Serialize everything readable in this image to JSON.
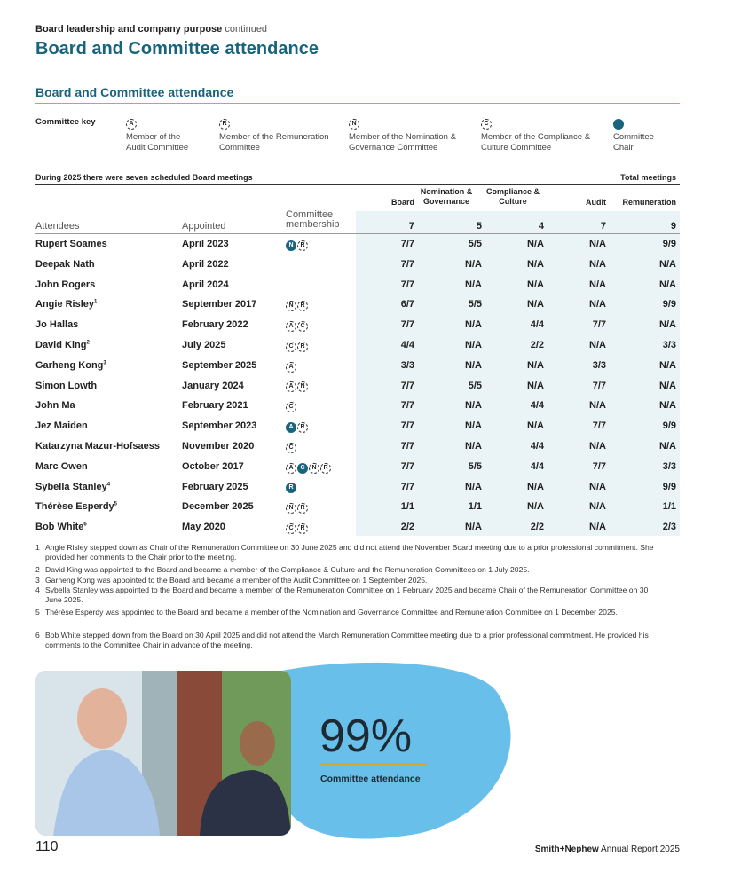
{
  "header": {
    "section": "Board leadership and company purpose",
    "continued": "continued",
    "title": "Board and Committee attendance"
  },
  "subtitle": "Board and Committee attendance",
  "key": {
    "label": "Committee key",
    "items": [
      {
        "symbol": "A",
        "text": "Member of the Audit Committee"
      },
      {
        "symbol": "R",
        "text": "Member of the Remuneration Committee"
      },
      {
        "symbol": "N",
        "text": "Member of the Nomination & Governance Committee"
      },
      {
        "symbol": "C",
        "text": "Member of the Compliance & Culture Committee"
      },
      {
        "text": "Committee Chair"
      }
    ]
  },
  "table": {
    "intro": "During 2025 there were seven scheduled Board meetings",
    "total_label": "Total meetings",
    "columns": [
      "Attendees",
      "Appointed",
      "Committee membership",
      "Board",
      "Nomination & Governance",
      "Compliance & Culture",
      "Audit",
      "Remuneration"
    ],
    "totals": [
      7,
      5,
      4,
      7,
      9
    ],
    "rows": [
      {
        "name": "Rupert Soames",
        "appointed": "April 2023",
        "membership": [
          {
            "letter": "N",
            "chair": true
          },
          {
            "letter": "R"
          }
        ],
        "values": [
          "7/7",
          "5/5",
          "N/A",
          "N/A",
          "9/9"
        ]
      },
      {
        "name": "Deepak Nath",
        "appointed": "April 2022",
        "membership": [],
        "values": [
          "7/7",
          "N/A",
          "N/A",
          "N/A",
          "N/A"
        ]
      },
      {
        "name": "John Rogers",
        "appointed": "April 2024",
        "membership": [],
        "values": [
          "7/7",
          "N/A",
          "N/A",
          "N/A",
          "N/A"
        ]
      },
      {
        "name": "Angie Risley",
        "note": "1",
        "appointed": "September 2017",
        "membership": [
          {
            "letter": "N"
          },
          {
            "letter": "R"
          }
        ],
        "values": [
          "6/7",
          "5/5",
          "N/A",
          "N/A",
          "9/9"
        ]
      },
      {
        "name": "Jo Hallas",
        "appointed": "February 2022",
        "membership": [
          {
            "letter": "A"
          },
          {
            "letter": "C"
          }
        ],
        "values": [
          "7/7",
          "N/A",
          "4/4",
          "7/7",
          "N/A"
        ]
      },
      {
        "name": "David King",
        "note": "2",
        "appointed": "July 2025",
        "membership": [
          {
            "letter": "C"
          },
          {
            "letter": "R"
          }
        ],
        "values": [
          "4/4",
          "N/A",
          "2/2",
          "N/A",
          "3/3"
        ]
      },
      {
        "name": "Garheng Kong",
        "note": "3",
        "appointed": "September 2025",
        "membership": [
          {
            "letter": "A"
          }
        ],
        "values": [
          "3/3",
          "N/A",
          "N/A",
          "3/3",
          "N/A"
        ]
      },
      {
        "name": "Simon Lowth",
        "appointed": "January 2024",
        "membership": [
          {
            "letter": "A"
          },
          {
            "letter": "N"
          }
        ],
        "values": [
          "7/7",
          "5/5",
          "N/A",
          "7/7",
          "N/A"
        ]
      },
      {
        "name": "John Ma",
        "appointed": "February 2021",
        "membership": [
          {
            "letter": "C"
          }
        ],
        "values": [
          "7/7",
          "N/A",
          "4/4",
          "N/A",
          "N/A"
        ]
      },
      {
        "name": "Jez Maiden",
        "appointed": "September 2023",
        "membership": [
          {
            "letter": "A",
            "chair": true
          },
          {
            "letter": "R"
          }
        ],
        "values": [
          "7/7",
          "N/A",
          "N/A",
          "7/7",
          "9/9"
        ]
      },
      {
        "name": "Katarzyna Mazur-Hofsaess",
        "appointed": "November 2020",
        "membership": [
          {
            "letter": "C"
          }
        ],
        "values": [
          "7/7",
          "N/A",
          "4/4",
          "N/A",
          "N/A"
        ]
      },
      {
        "name": "Marc Owen",
        "appointed": "October 2017",
        "membership": [
          {
            "letter": "A"
          },
          {
            "letter": "C",
            "chair": true
          },
          {
            "letter": "N"
          },
          {
            "letter": "R"
          }
        ],
        "values": [
          "7/7",
          "5/5",
          "4/4",
          "7/7",
          "3/3"
        ]
      },
      {
        "name": "Sybella Stanley",
        "note": "4",
        "appointed": "February 2025",
        "membership": [
          {
            "letter": "R",
            "chair": true
          }
        ],
        "values": [
          "7/7",
          "N/A",
          "N/A",
          "N/A",
          "9/9"
        ]
      },
      {
        "name": "Thérèse Esperdy",
        "note": "5",
        "appointed": "December 2025",
        "membership": [
          {
            "letter": "N"
          },
          {
            "letter": "R"
          }
        ],
        "values": [
          "1/1",
          "1/1",
          "N/A",
          "N/A",
          "1/1"
        ]
      },
      {
        "name": "Bob White",
        "note": "6",
        "appointed": "May 2020",
        "membership": [
          {
            "letter": "C"
          },
          {
            "letter": "R"
          }
        ],
        "values": [
          "2/2",
          "N/A",
          "2/2",
          "N/A",
          "2/3"
        ]
      }
    ]
  },
  "footnotes": [
    {
      "number": "1",
      "text": "Angie Risley stepped down as Chair of the Remuneration Committee on 30 June 2025 and did not attend the November Board meeting due to a prior professional commitment. She provided her comments to the Chair prior to the meeting."
    },
    {
      "number": "2",
      "text": "David King was appointed to the Board and became a member of the Compliance & Culture and the Remuneration Committees on 1 July 2025."
    },
    {
      "number": "3",
      "text": "Garheng Kong was appointed to the Board and became a member of the Audit Committee on 1 September 2025."
    },
    {
      "number": "4",
      "text": "Sybella Stanley was appointed to the Board and became a member of the Remuneration Committee on 1 February 2025 and became Chair of the Remuneration Committee on 30 June 2025."
    },
    {
      "number": "5",
      "text": "Thérèse Esperdy was appointed to the Board and became a member of the Nomination and Governance Committee and Remuneration Committee on 1 December 2025."
    },
    {
      "number": "6",
      "text": "Bob White stepped down from the Board on 30 April 2025 and did not attend the March Remuneration Committee meeting due to a prior professional commitment. He provided his comments to the Committee Chair in advance of the meeting."
    }
  ],
  "stat": {
    "value": "99%",
    "label": "Committee attendance"
  },
  "footer": {
    "page": "110",
    "brand": "Smith+Nephew",
    "report": "Annual Report 2025"
  }
}
